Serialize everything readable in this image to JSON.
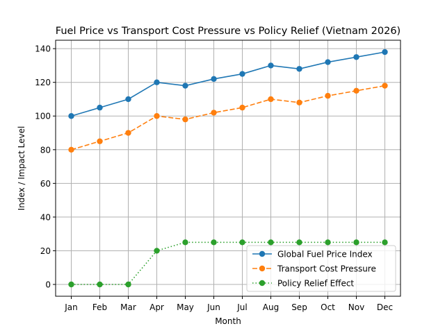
{
  "chart_data": {
    "type": "line",
    "title": "Fuel Price vs Transport Cost Pressure vs Policy Relief (Vietnam 2026)",
    "xlabel": "Month",
    "ylabel": "Index / Impact Level",
    "categories": [
      "Jan",
      "Feb",
      "Mar",
      "Apr",
      "May",
      "Jun",
      "Jul",
      "Aug",
      "Sep",
      "Oct",
      "Nov",
      "Dec"
    ],
    "ylim": [
      -7,
      145
    ],
    "yticks": [
      0,
      20,
      40,
      60,
      80,
      100,
      120,
      140
    ],
    "grid": true,
    "legend_position": "lower-right",
    "series": [
      {
        "name": "Global Fuel Price Index",
        "color": "#1f77b4",
        "style": "solid",
        "values": [
          100,
          105,
          110,
          120,
          118,
          122,
          125,
          130,
          128,
          132,
          135,
          138
        ]
      },
      {
        "name": "Transport Cost Pressure",
        "color": "#ff7f0e",
        "style": "dashed",
        "values": [
          80,
          85,
          90,
          100,
          98,
          102,
          105,
          110,
          108,
          112,
          115,
          118
        ]
      },
      {
        "name": "Policy Relief Effect",
        "color": "#2ca02c",
        "style": "dotted",
        "values": [
          0,
          0,
          0,
          20,
          25,
          25,
          25,
          25,
          25,
          25,
          25,
          25
        ]
      }
    ]
  }
}
